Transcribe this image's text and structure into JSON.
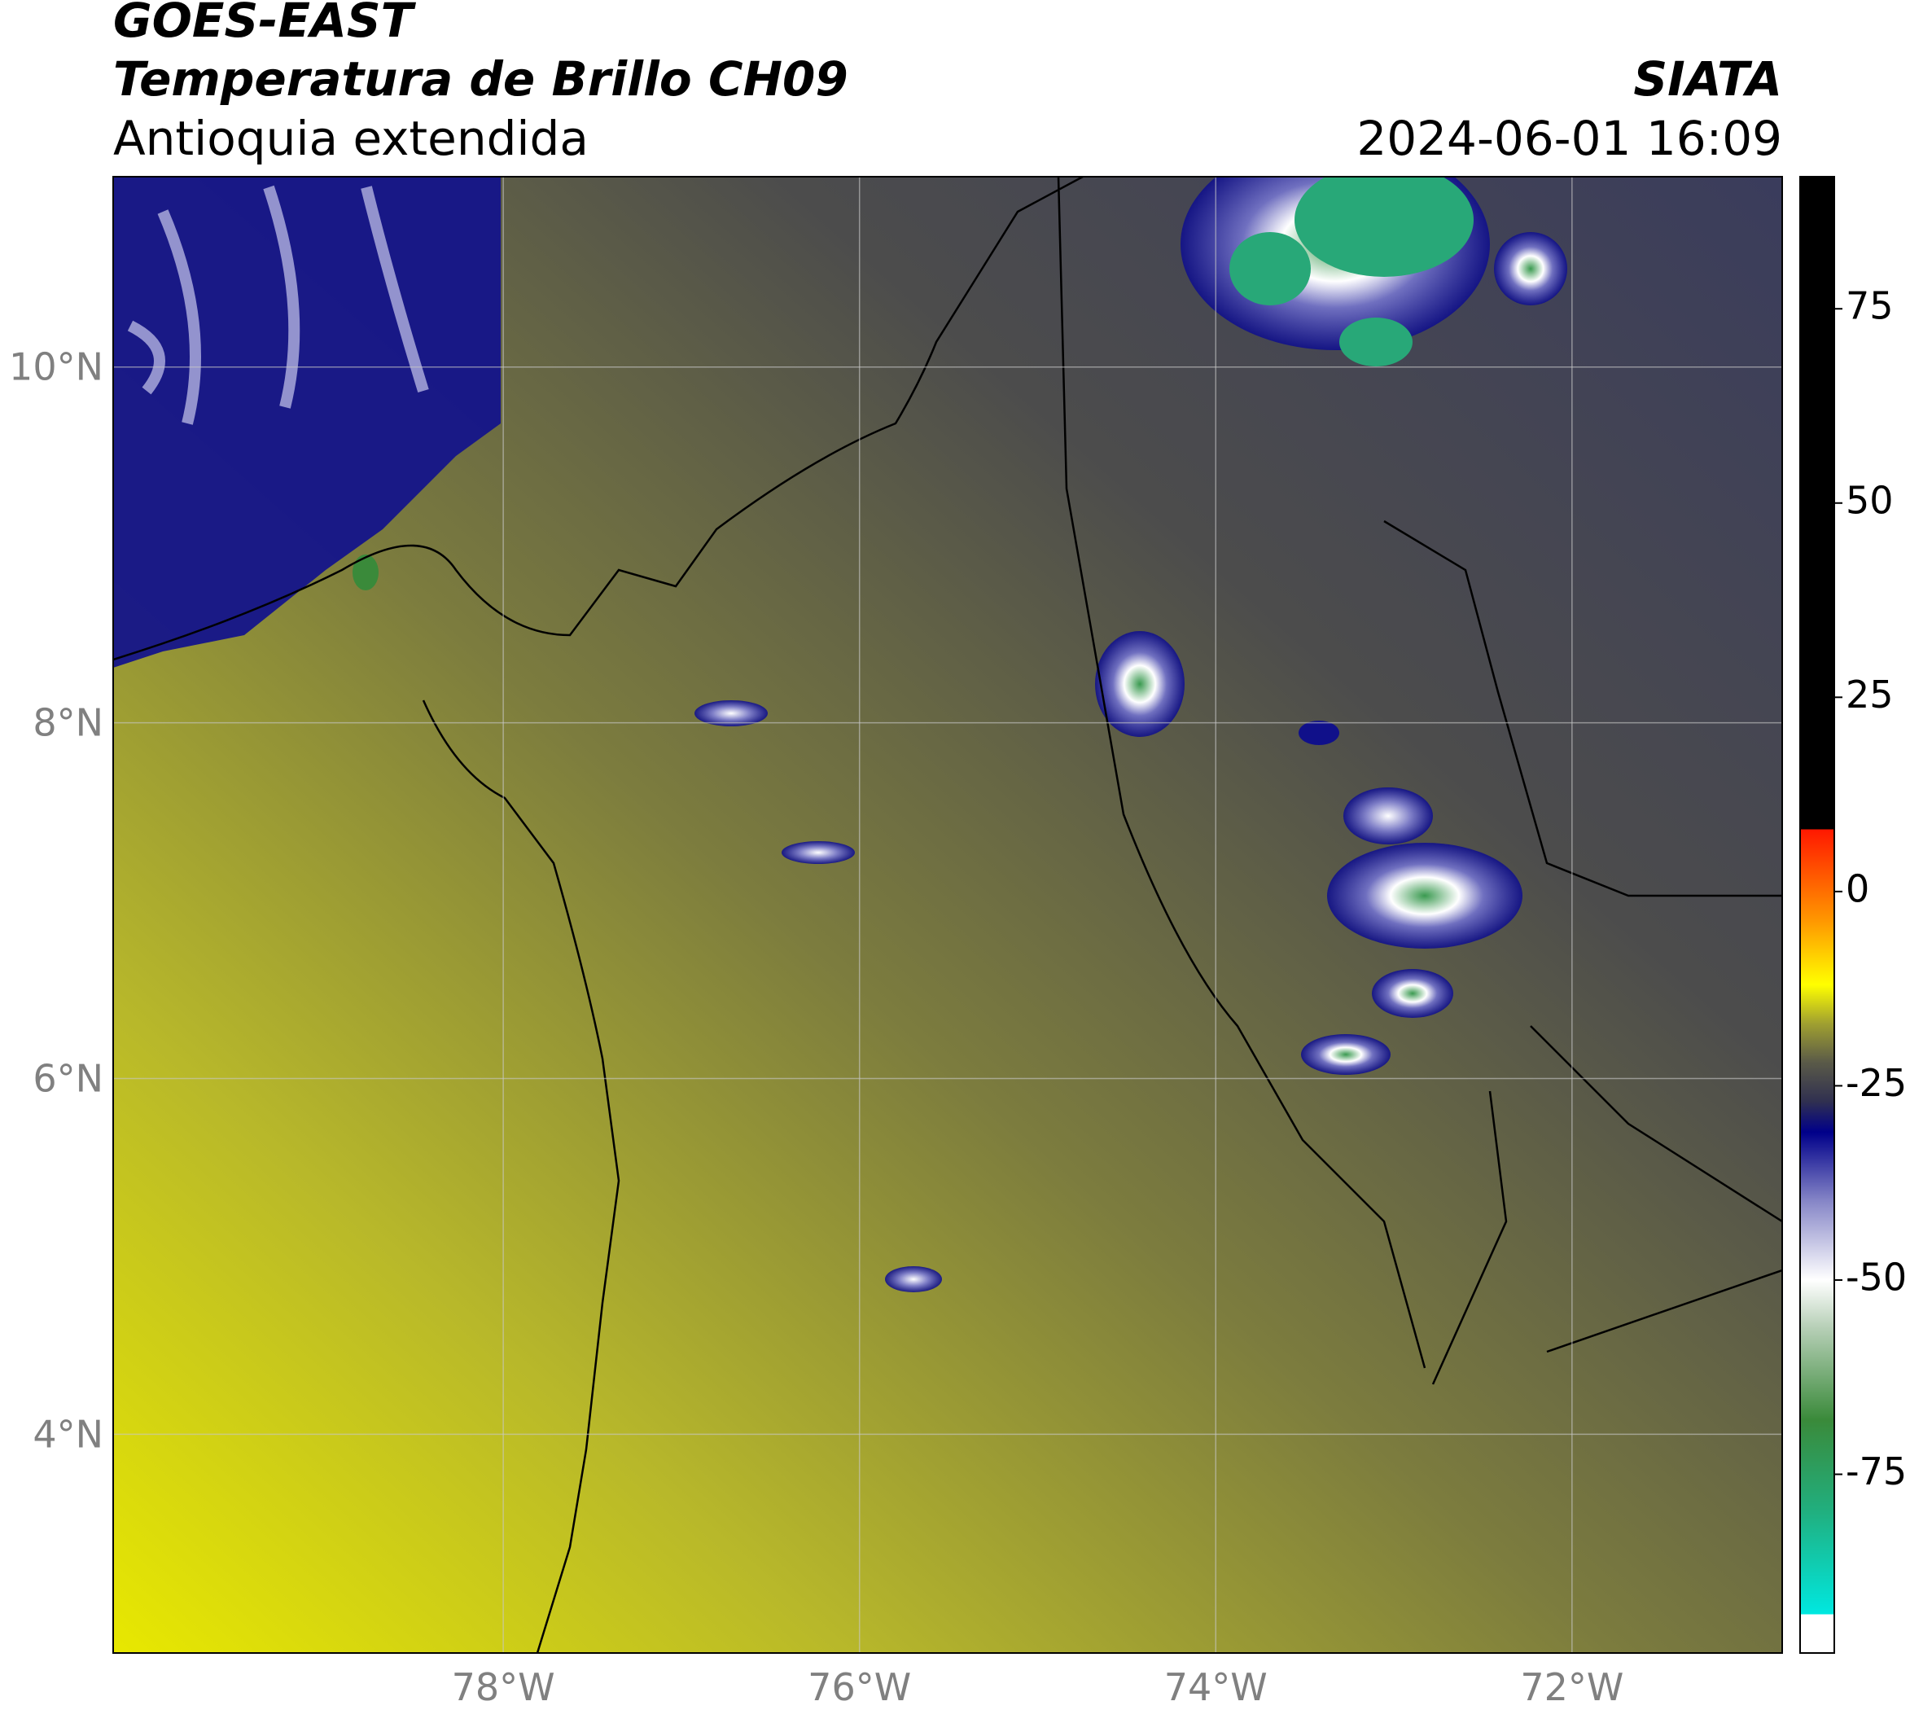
{
  "header": {
    "title": "GOES-EAST",
    "subtitle": "Temperatura de Brillo CH09",
    "region": "Antioquia extendida",
    "source": "SIATA",
    "datetime": "2024-06-01 16:09"
  },
  "map": {
    "lonlim": [
      -80.19,
      -70.82
    ],
    "latlim": [
      2.77,
      11.07
    ],
    "lonticks": [
      {
        "value": -78,
        "label": "78°W"
      },
      {
        "value": -76,
        "label": "76°W"
      },
      {
        "value": -74,
        "label": "74°W"
      },
      {
        "value": -72,
        "label": "72°W"
      }
    ],
    "latticks": [
      {
        "value": 4,
        "label": "4°N"
      },
      {
        "value": 6,
        "label": "6°N"
      },
      {
        "value": 8,
        "label": "8°N"
      },
      {
        "value": 10,
        "label": "10°N"
      }
    ],
    "grid": true
  },
  "colorbar": {
    "lim": [
      -98,
      92
    ],
    "ticks": [
      -75,
      -50,
      -25,
      0,
      25,
      50,
      75
    ],
    "stops": [
      [
        -98,
        "#ffffff"
      ],
      [
        -93,
        "#ffffff"
      ],
      [
        -93,
        "#00e8e0"
      ],
      [
        -80,
        "#20b080"
      ],
      [
        -68,
        "#3a8a3a"
      ],
      [
        -56,
        "#b8d0b8"
      ],
      [
        -50,
        "#ffffff"
      ],
      [
        -40,
        "#8888c8"
      ],
      [
        -31,
        "#00008a"
      ],
      [
        -27,
        "#303050"
      ],
      [
        -22,
        "#5a5a48"
      ],
      [
        -17,
        "#a0a030"
      ],
      [
        -12,
        "#ffff00"
      ],
      [
        -4,
        "#ff9a00"
      ],
      [
        8,
        "#ff1800"
      ],
      [
        8,
        "#000000"
      ],
      [
        92,
        "#000000"
      ]
    ]
  }
}
